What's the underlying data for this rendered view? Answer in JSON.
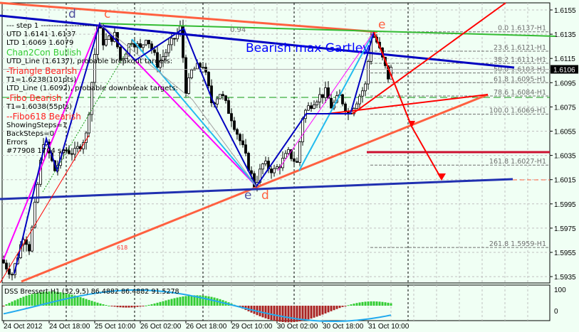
{
  "window": {
    "background": "#f0fff4"
  },
  "chart_data": {
    "type": "candlestick",
    "symbol_timeframe": "H1",
    "current_price": "1.6106",
    "price_axis": {
      "ticks": [
        "1.6155",
        "1.6135",
        "1.6115",
        "1.6095",
        "1.6075",
        "1.6055",
        "1.6035",
        "1.6015",
        "1.5995",
        "1.5975",
        "1.5955",
        "1.5935"
      ],
      "range": [
        1.5925,
        1.6163
      ]
    },
    "time_axis": {
      "ticks": [
        "24 Oct 2012",
        "24 Oct 18:00",
        "25 Oct 10:00",
        "26 Oct 02:00",
        "26 Oct 18:00",
        "29 Oct 10:00",
        "30 Oct 02:00",
        "30 Oct 18:00",
        "31 Oct 10:00"
      ]
    },
    "price_path": [
      [
        0,
        1.5949
      ],
      [
        4,
        1.5937
      ],
      [
        8,
        1.597
      ],
      [
        10,
        1.5958
      ],
      [
        15,
        1.6049
      ],
      [
        19,
        1.6022
      ],
      [
        22,
        1.604
      ],
      [
        26,
        1.6037
      ],
      [
        30,
        1.6052
      ],
      [
        34,
        1.6144
      ],
      [
        36,
        1.6128
      ],
      [
        40,
        1.6134
      ],
      [
        42,
        1.6113
      ],
      [
        46,
        1.6131
      ],
      [
        49,
        1.6122
      ],
      [
        51,
        1.6134
      ],
      [
        55,
        1.611
      ],
      [
        60,
        1.6128
      ],
      [
        63,
        1.614
      ],
      [
        65,
        1.6087
      ],
      [
        67,
        1.6105
      ],
      [
        71,
        1.611
      ],
      [
        74,
        1.6078
      ],
      [
        77,
        1.6087
      ],
      [
        81,
        1.6066
      ],
      [
        85,
        1.604
      ],
      [
        89,
        1.601
      ],
      [
        92,
        1.6028
      ],
      [
        96,
        1.6022
      ],
      [
        101,
        1.6037
      ],
      [
        104,
        1.6028
      ],
      [
        106,
        1.6069
      ],
      [
        110,
        1.6081
      ],
      [
        114,
        1.6087
      ],
      [
        116,
        1.6075
      ],
      [
        119,
        1.6084
      ],
      [
        122,
        1.6069
      ],
      [
        125,
        1.6081
      ],
      [
        128,
        1.6093
      ],
      [
        130,
        1.6137
      ],
      [
        132,
        1.6128
      ],
      [
        136,
        1.6099
      ],
      [
        136,
        1.6106
      ]
    ],
    "fib_levels": [
      {
        "label": "0.0 1.6137-H1",
        "price": 1.6137
      },
      {
        "label": "23.6 1.6121-H1",
        "price": 1.6121
      },
      {
        "label": "38.2 1.6111-H1",
        "price": 1.6111
      },
      {
        "label": "50.0 1.6103-H1",
        "price": 1.6103
      },
      {
        "label": "61.8 1.6095-H1",
        "price": 1.6095
      },
      {
        "label": "78.6 1.6084-H1",
        "price": 1.6084
      },
      {
        "label": "100.0 1.6069-H1",
        "price": 1.6069
      },
      {
        "label": "161.8 1.6027-H1",
        "price": 1.6027
      },
      {
        "label": "261.8 1.5959-H1",
        "price": 1.5959
      }
    ],
    "indicator": {
      "title": "DSS Bressert H1 (32,9,5) 86.4882 86.4882 91.5278",
      "axis_ticks": [
        "100",
        "0"
      ],
      "colors": {
        "positive": "#33cc33",
        "negative": "#aa2222",
        "signal_up": "#22aaee",
        "signal_down": "#ff0000"
      }
    }
  },
  "info_panel": {
    "lines": [
      "---   step 1   ---------------------",
      "UTD  1.6141   1.6137",
      "LTD   1.6069   1.6079",
      "UTD_Line (1.6137), probable breakout targets:",
      "T1=1.6238(101pts)",
      "LTD_Line (1.6092), probable downbreak targets:",
      "T1=1.6038(55pts)",
      "ShowingSteps=1",
      "BackSteps=0",
      "Errors"
    ],
    "overlay_lines": [
      {
        "text": "Chan2Con Bullish",
        "color": "#33cc33"
      },
      {
        "text": "-Triangle Bearish",
        "color": "#ff2020"
      },
      {
        "text": "-Fibo Bearish",
        "color": "#ff2020"
      },
      {
        "text": "--Fibo618 Bearish",
        "color": "#ff2020"
      }
    ],
    "trade": "#77908 1704 sell"
  },
  "annotations": {
    "pattern": "Bearish max Gartley",
    "d_top": "d",
    "c_top": "c",
    "e_top": "e",
    "e_bottom": "e",
    "d_bottom": "d",
    "ratio_094": "0.94",
    "ratio_618": "618"
  },
  "colors": {
    "orange_line": "#ff6040",
    "blue_line": "#0000c0",
    "green_line": "#33bb33",
    "red": "#ff0000",
    "crimson": "#cc1030",
    "magenta": "#ff00ff",
    "cyan": "#22bbee"
  }
}
